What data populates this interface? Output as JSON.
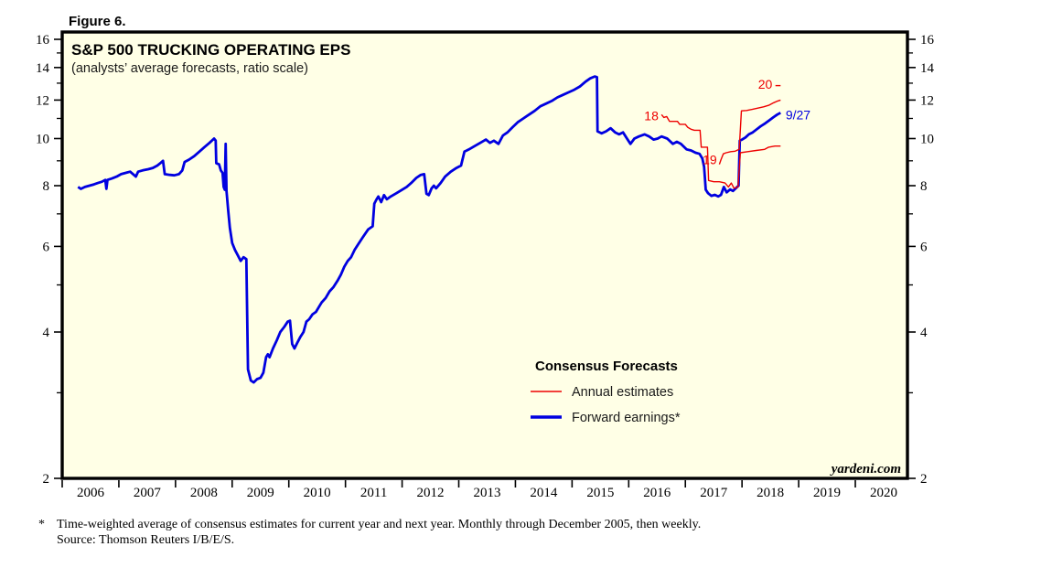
{
  "figure_label": "Figure 6.",
  "chart": {
    "title": "S&P 500 TRUCKING OPERATING EPS",
    "subtitle": "(analysts’ average forecasts, ratio scale)",
    "watermark": "yardeni.com",
    "background_color": "#FFFFE6",
    "border_color": "#000000"
  },
  "legend": {
    "header": "Consensus Forecasts",
    "items": [
      {
        "label": "Annual estimates",
        "color": "#EE0000"
      },
      {
        "label": "Forward earnings*",
        "color": "#0000E0"
      }
    ]
  },
  "footnote": {
    "marker": "*",
    "line1": "Time-weighted average of consensus estimates for current year and next year. Monthly through December 2005, then weekly.",
    "line2": "Source: Thomson Reuters I/B/E/S."
  },
  "chart_data": {
    "type": "line",
    "title": "S&P 500 TRUCKING OPERATING EPS",
    "xlabel": "",
    "ylabel": "",
    "x_axis": {
      "min": 2006,
      "max": 2020.92,
      "tick_years": [
        2006,
        2007,
        2008,
        2009,
        2010,
        2011,
        2012,
        2013,
        2014,
        2015,
        2016,
        2017,
        2018,
        2019,
        2020
      ],
      "labels": [
        "2006",
        "2007",
        "2008",
        "2009",
        "2010",
        "2011",
        "2012",
        "2013",
        "2014",
        "2015",
        "2016",
        "2017",
        "2018",
        "2019",
        "2020"
      ]
    },
    "y_axis": {
      "scale": "log",
      "min": 2,
      "max": 16,
      "major_ticks": [
        2,
        4,
        6,
        8,
        10,
        12,
        14,
        16
      ],
      "minor_ticks": [
        3,
        5,
        7,
        9,
        11,
        13,
        15
      ],
      "sides": [
        "left",
        "right"
      ]
    },
    "series": [
      {
        "name": "Forward earnings",
        "color": "#0000E0",
        "width": 2.8,
        "points": [
          [
            2006.28,
            7.95
          ],
          [
            2006.33,
            7.88
          ],
          [
            2006.4,
            7.95
          ],
          [
            2006.48,
            8.0
          ],
          [
            2006.56,
            8.05
          ],
          [
            2006.63,
            8.1
          ],
          [
            2006.7,
            8.15
          ],
          [
            2006.76,
            8.22
          ],
          [
            2006.78,
            7.88
          ],
          [
            2006.8,
            8.22
          ],
          [
            2006.88,
            8.28
          ],
          [
            2006.96,
            8.35
          ],
          [
            2007.04,
            8.45
          ],
          [
            2007.12,
            8.5
          ],
          [
            2007.2,
            8.55
          ],
          [
            2007.3,
            8.35
          ],
          [
            2007.34,
            8.55
          ],
          [
            2007.42,
            8.6
          ],
          [
            2007.52,
            8.65
          ],
          [
            2007.6,
            8.7
          ],
          [
            2007.68,
            8.8
          ],
          [
            2007.74,
            8.92
          ],
          [
            2007.78,
            9.0
          ],
          [
            2007.81,
            8.45
          ],
          [
            2007.9,
            8.42
          ],
          [
            2007.98,
            8.4
          ],
          [
            2008.06,
            8.45
          ],
          [
            2008.12,
            8.6
          ],
          [
            2008.16,
            8.95
          ],
          [
            2008.24,
            9.05
          ],
          [
            2008.33,
            9.2
          ],
          [
            2008.42,
            9.4
          ],
          [
            2008.51,
            9.6
          ],
          [
            2008.6,
            9.8
          ],
          [
            2008.68,
            10.0
          ],
          [
            2008.71,
            9.9
          ],
          [
            2008.72,
            8.9
          ],
          [
            2008.77,
            8.85
          ],
          [
            2008.8,
            8.6
          ],
          [
            2008.83,
            8.5
          ],
          [
            2008.85,
            7.95
          ],
          [
            2008.87,
            7.85
          ],
          [
            2008.885,
            9.75
          ],
          [
            2008.9,
            7.8
          ],
          [
            2008.93,
            7.1
          ],
          [
            2008.96,
            6.55
          ],
          [
            2009.0,
            6.1
          ],
          [
            2009.05,
            5.9
          ],
          [
            2009.1,
            5.75
          ],
          [
            2009.15,
            5.6
          ],
          [
            2009.2,
            5.7
          ],
          [
            2009.25,
            5.65
          ],
          [
            2009.28,
            3.35
          ],
          [
            2009.33,
            3.18
          ],
          [
            2009.38,
            3.15
          ],
          [
            2009.44,
            3.2
          ],
          [
            2009.5,
            3.22
          ],
          [
            2009.55,
            3.3
          ],
          [
            2009.6,
            3.55
          ],
          [
            2009.63,
            3.6
          ],
          [
            2009.66,
            3.55
          ],
          [
            2009.72,
            3.7
          ],
          [
            2009.79,
            3.85
          ],
          [
            2009.85,
            4.0
          ],
          [
            2009.92,
            4.1
          ],
          [
            2009.98,
            4.2
          ],
          [
            2010.02,
            4.22
          ],
          [
            2010.06,
            3.78
          ],
          [
            2010.1,
            3.7
          ],
          [
            2010.15,
            3.8
          ],
          [
            2010.2,
            3.9
          ],
          [
            2010.26,
            4.0
          ],
          [
            2010.31,
            4.2
          ],
          [
            2010.36,
            4.25
          ],
          [
            2010.42,
            4.35
          ],
          [
            2010.48,
            4.4
          ],
          [
            2010.53,
            4.5
          ],
          [
            2010.58,
            4.6
          ],
          [
            2010.65,
            4.7
          ],
          [
            2010.72,
            4.85
          ],
          [
            2010.79,
            4.95
          ],
          [
            2010.86,
            5.1
          ],
          [
            2010.92,
            5.25
          ],
          [
            2010.98,
            5.45
          ],
          [
            2011.04,
            5.6
          ],
          [
            2011.1,
            5.7
          ],
          [
            2011.16,
            5.9
          ],
          [
            2011.22,
            6.05
          ],
          [
            2011.3,
            6.25
          ],
          [
            2011.4,
            6.5
          ],
          [
            2011.48,
            6.6
          ],
          [
            2011.51,
            7.35
          ],
          [
            2011.55,
            7.5
          ],
          [
            2011.58,
            7.6
          ],
          [
            2011.63,
            7.4
          ],
          [
            2011.68,
            7.65
          ],
          [
            2011.73,
            7.5
          ],
          [
            2011.8,
            7.6
          ],
          [
            2011.9,
            7.72
          ],
          [
            2012.0,
            7.85
          ],
          [
            2012.08,
            7.95
          ],
          [
            2012.16,
            8.1
          ],
          [
            2012.25,
            8.3
          ],
          [
            2012.33,
            8.42
          ],
          [
            2012.39,
            8.45
          ],
          [
            2012.43,
            7.7
          ],
          [
            2012.47,
            7.65
          ],
          [
            2012.52,
            7.9
          ],
          [
            2012.56,
            8.0
          ],
          [
            2012.6,
            7.9
          ],
          [
            2012.68,
            8.1
          ],
          [
            2012.76,
            8.35
          ],
          [
            2012.86,
            8.55
          ],
          [
            2012.96,
            8.7
          ],
          [
            2013.04,
            8.8
          ],
          [
            2013.1,
            9.4
          ],
          [
            2013.18,
            9.5
          ],
          [
            2013.28,
            9.65
          ],
          [
            2013.38,
            9.8
          ],
          [
            2013.48,
            9.95
          ],
          [
            2013.55,
            9.8
          ],
          [
            2013.62,
            9.9
          ],
          [
            2013.7,
            9.75
          ],
          [
            2013.78,
            10.15
          ],
          [
            2013.86,
            10.3
          ],
          [
            2013.95,
            10.55
          ],
          [
            2014.04,
            10.8
          ],
          [
            2014.14,
            11.0
          ],
          [
            2014.24,
            11.2
          ],
          [
            2014.34,
            11.4
          ],
          [
            2014.44,
            11.65
          ],
          [
            2014.54,
            11.8
          ],
          [
            2014.64,
            11.95
          ],
          [
            2014.74,
            12.15
          ],
          [
            2014.84,
            12.3
          ],
          [
            2014.94,
            12.45
          ],
          [
            2015.04,
            12.6
          ],
          [
            2015.14,
            12.8
          ],
          [
            2015.24,
            13.1
          ],
          [
            2015.32,
            13.3
          ],
          [
            2015.4,
            13.42
          ],
          [
            2015.44,
            13.38
          ],
          [
            2015.45,
            10.35
          ],
          [
            2015.52,
            10.25
          ],
          [
            2015.6,
            10.35
          ],
          [
            2015.68,
            10.5
          ],
          [
            2015.76,
            10.3
          ],
          [
            2015.83,
            10.2
          ],
          [
            2015.9,
            10.3
          ],
          [
            2015.97,
            10.0
          ],
          [
            2016.03,
            9.75
          ],
          [
            2016.1,
            10.0
          ],
          [
            2016.18,
            10.1
          ],
          [
            2016.28,
            10.2
          ],
          [
            2016.36,
            10.1
          ],
          [
            2016.44,
            9.95
          ],
          [
            2016.51,
            10.0
          ],
          [
            2016.58,
            10.1
          ],
          [
            2016.68,
            10.0
          ],
          [
            2016.78,
            9.75
          ],
          [
            2016.85,
            9.85
          ],
          [
            2016.92,
            9.75
          ],
          [
            2017.02,
            9.5
          ],
          [
            2017.1,
            9.45
          ],
          [
            2017.18,
            9.35
          ],
          [
            2017.25,
            9.3
          ],
          [
            2017.3,
            9.1
          ],
          [
            2017.33,
            8.75
          ],
          [
            2017.36,
            7.85
          ],
          [
            2017.4,
            7.72
          ],
          [
            2017.46,
            7.62
          ],
          [
            2017.52,
            7.66
          ],
          [
            2017.58,
            7.6
          ],
          [
            2017.63,
            7.66
          ],
          [
            2017.68,
            7.95
          ],
          [
            2017.73,
            7.75
          ],
          [
            2017.79,
            7.86
          ],
          [
            2017.84,
            7.8
          ],
          [
            2017.89,
            7.9
          ],
          [
            2017.94,
            8.0
          ],
          [
            2017.96,
            9.9
          ],
          [
            2018.0,
            9.95
          ],
          [
            2018.06,
            10.05
          ],
          [
            2018.12,
            10.2
          ],
          [
            2018.19,
            10.3
          ],
          [
            2018.26,
            10.45
          ],
          [
            2018.33,
            10.6
          ],
          [
            2018.41,
            10.75
          ],
          [
            2018.48,
            10.9
          ],
          [
            2018.55,
            11.05
          ],
          [
            2018.62,
            11.2
          ],
          [
            2018.68,
            11.3
          ]
        ]
      },
      {
        "name": "Annual estimates 2018",
        "color": "#EE0000",
        "width": 1.4,
        "points": [
          [
            2016.58,
            11.2
          ],
          [
            2016.62,
            11.05
          ],
          [
            2016.67,
            11.1
          ],
          [
            2016.72,
            10.85
          ],
          [
            2016.86,
            10.85
          ],
          [
            2016.9,
            10.7
          ],
          [
            2017.0,
            10.7
          ],
          [
            2017.04,
            10.55
          ],
          [
            2017.1,
            10.45
          ],
          [
            2017.16,
            10.4
          ],
          [
            2017.26,
            10.4
          ],
          [
            2017.28,
            9.6
          ],
          [
            2017.39,
            9.6
          ],
          [
            2017.41,
            8.2
          ],
          [
            2017.5,
            8.15
          ],
          [
            2017.6,
            8.15
          ],
          [
            2017.7,
            8.1
          ],
          [
            2017.76,
            7.95
          ],
          [
            2017.81,
            8.1
          ],
          [
            2017.86,
            7.9
          ],
          [
            2017.93,
            7.95
          ],
          [
            2017.97,
            9.35
          ],
          [
            2018.1,
            9.4
          ],
          [
            2018.25,
            9.45
          ],
          [
            2018.4,
            9.5
          ],
          [
            2018.47,
            9.6
          ],
          [
            2018.58,
            9.65
          ],
          [
            2018.68,
            9.65
          ]
        ]
      },
      {
        "name": "Annual estimates 2019",
        "color": "#EE0000",
        "width": 1.4,
        "points": [
          [
            2017.6,
            8.85
          ],
          [
            2017.63,
            9.05
          ],
          [
            2017.67,
            9.3
          ],
          [
            2017.72,
            9.35
          ],
          [
            2017.8,
            9.4
          ],
          [
            2017.88,
            9.42
          ],
          [
            2017.95,
            9.5
          ],
          [
            2017.99,
            11.4
          ],
          [
            2018.08,
            11.42
          ],
          [
            2018.18,
            11.48
          ],
          [
            2018.28,
            11.55
          ],
          [
            2018.38,
            11.62
          ],
          [
            2018.48,
            11.72
          ],
          [
            2018.56,
            11.85
          ],
          [
            2018.63,
            11.95
          ],
          [
            2018.68,
            12.0
          ]
        ]
      },
      {
        "name": "Annual estimates 2020",
        "color": "#EE0000",
        "width": 1.4,
        "points": [
          [
            2018.59,
            12.85
          ],
          [
            2018.68,
            12.85
          ]
        ]
      }
    ],
    "annotations": [
      {
        "text": "18",
        "year": 2016.4,
        "value": 11.15,
        "color": "#EE0000"
      },
      {
        "text": "19",
        "year": 2017.43,
        "value": 9.05,
        "color": "#EE0000"
      },
      {
        "text": "20",
        "year": 2018.41,
        "value": 12.95,
        "color": "#EE0000"
      },
      {
        "text": "9/27",
        "year": 2018.99,
        "value": 11.2,
        "color": "#0000E0"
      }
    ],
    "legend_position": "inside lower right",
    "grid": false
  }
}
